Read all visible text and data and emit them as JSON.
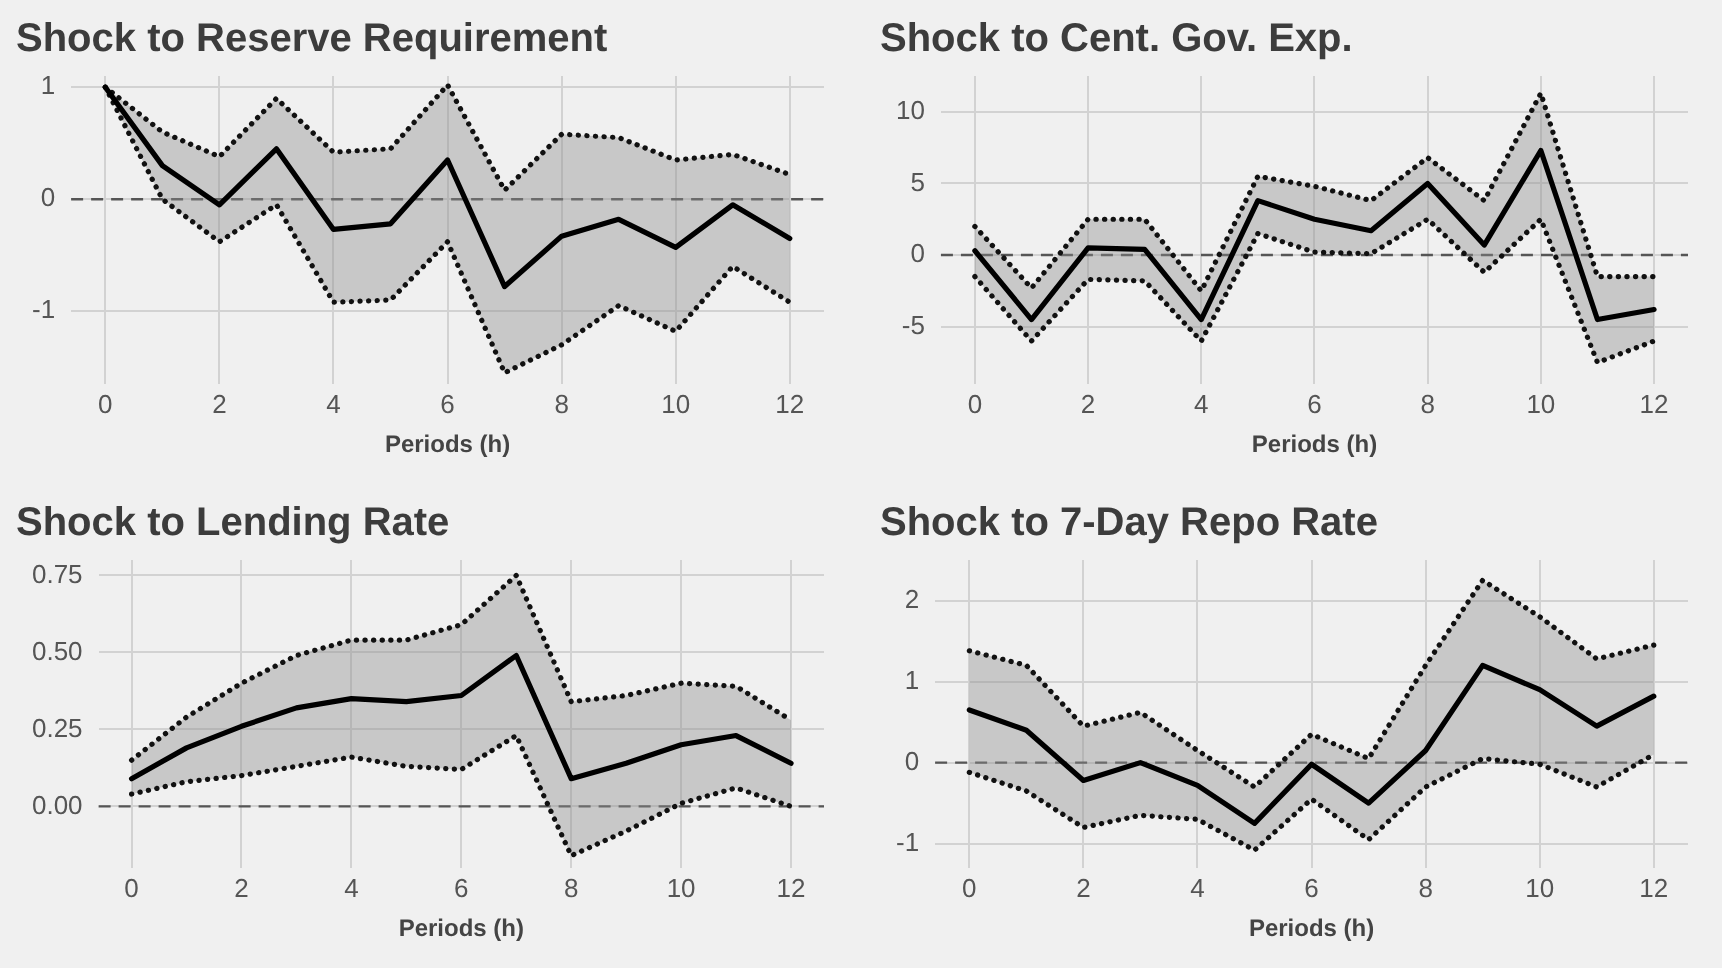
{
  "chart_data": [
    {
      "type": "line",
      "title": "Shock to Reserve Requirement",
      "xlabel": "Periods (h)",
      "x": [
        0,
        1,
        2,
        3,
        4,
        5,
        6,
        7,
        8,
        9,
        10,
        11,
        12
      ],
      "xlim": [
        -0.6,
        12.6
      ],
      "xticks": [
        0,
        2,
        4,
        6,
        8,
        10,
        12
      ],
      "ylim": [
        -1.65,
        1.1
      ],
      "yticks": [
        -1,
        0,
        1
      ],
      "grid": true,
      "legend": false,
      "marker": "none",
      "series": [
        {
          "color": "#000000",
          "line_style": "solid",
          "values": [
            1.0,
            0.3,
            -0.05,
            0.45,
            -0.27,
            -0.22,
            0.35,
            -0.78,
            -0.33,
            -0.18,
            -0.43,
            -0.05,
            -0.35
          ],
          "upper": [
            1.0,
            0.6,
            0.38,
            0.9,
            0.42,
            0.45,
            1.02,
            0.08,
            0.58,
            0.55,
            0.35,
            0.4,
            0.22
          ],
          "lower": [
            1.0,
            0.0,
            -0.38,
            -0.05,
            -0.92,
            -0.9,
            -0.38,
            -1.55,
            -1.3,
            -0.95,
            -1.18,
            -0.6,
            -0.92
          ]
        },
        {
          "color": "#111111",
          "line_style": "dotted",
          "values": [
            1.0,
            0.6,
            0.38,
            0.9,
            0.42,
            0.45,
            1.02,
            0.08,
            0.58,
            0.55,
            0.35,
            0.4,
            0.22
          ]
        },
        {
          "color": "#111111",
          "line_style": "dotted",
          "values": [
            1.0,
            0.0,
            -0.38,
            -0.05,
            -0.92,
            -0.9,
            -0.38,
            -1.55,
            -1.3,
            -0.95,
            -1.18,
            -0.6,
            -0.92
          ]
        }
      ],
      "ref_lines": [
        {
          "axis": "y",
          "value": 0,
          "color": "#555555",
          "line_style": "dashed"
        }
      ]
    },
    {
      "type": "line",
      "title": "Shock to Cent. Gov. Exp.",
      "xlabel": "Periods (h)",
      "x": [
        0,
        1,
        2,
        3,
        4,
        5,
        6,
        7,
        8,
        9,
        10,
        11,
        12
      ],
      "xlim": [
        -0.6,
        12.6
      ],
      "xticks": [
        0,
        2,
        4,
        6,
        8,
        10,
        12
      ],
      "ylim": [
        -9,
        12.5
      ],
      "yticks": [
        -5,
        0,
        5,
        10
      ],
      "grid": true,
      "legend": false,
      "marker": "none",
      "series": [
        {
          "color": "#000000",
          "line_style": "solid",
          "values": [
            0.3,
            -4.5,
            0.5,
            0.4,
            -4.5,
            3.8,
            2.5,
            1.7,
            5,
            0.7,
            7.3,
            -4.5,
            -3.8
          ],
          "upper": [
            2,
            -2.3,
            2.5,
            2.5,
            -2.5,
            5.5,
            4.8,
            3.8,
            6.8,
            3.8,
            11.3,
            -1.5,
            -1.5
          ],
          "lower": [
            -1.5,
            -6,
            -1.7,
            -1.8,
            -6,
            1.5,
            0.2,
            0.1,
            2.5,
            -1.2,
            2.5,
            -7.5,
            -6
          ]
        },
        {
          "color": "#111111",
          "line_style": "dotted",
          "values": [
            2,
            -2.3,
            2.5,
            2.5,
            -2.5,
            5.5,
            4.8,
            3.8,
            6.8,
            3.8,
            11.3,
            -1.5,
            -1.5
          ]
        },
        {
          "color": "#111111",
          "line_style": "dotted",
          "values": [
            -1.5,
            -6,
            -1.7,
            -1.8,
            -6,
            1.5,
            0.2,
            0.1,
            2.5,
            -1.2,
            2.5,
            -7.5,
            -6
          ]
        }
      ],
      "ref_lines": [
        {
          "axis": "y",
          "value": 0,
          "color": "#555555",
          "line_style": "dashed"
        }
      ]
    },
    {
      "type": "line",
      "title": "Shock to Lending Rate",
      "xlabel": "Periods (h)",
      "x": [
        0,
        1,
        2,
        3,
        4,
        5,
        6,
        7,
        8,
        9,
        10,
        11,
        12
      ],
      "xlim": [
        -0.6,
        12.6
      ],
      "xticks": [
        0,
        2,
        4,
        6,
        8,
        10,
        12
      ],
      "ylim": [
        -0.2,
        0.8
      ],
      "yticks": [
        {
          "value": 0,
          "label": "0.00"
        },
        {
          "value": 0.25,
          "label": "0.25"
        },
        {
          "value": 0.5,
          "label": "0.50"
        },
        {
          "value": 0.75,
          "label": "0.75"
        }
      ],
      "grid": true,
      "legend": false,
      "marker": "none",
      "series": [
        {
          "color": "#000000",
          "line_style": "solid",
          "values": [
            0.09,
            0.19,
            0.26,
            0.32,
            0.35,
            0.34,
            0.36,
            0.49,
            0.09,
            0.14,
            0.2,
            0.23,
            0.14
          ],
          "upper": [
            0.15,
            0.29,
            0.4,
            0.49,
            0.54,
            0.54,
            0.59,
            0.75,
            0.34,
            0.36,
            0.4,
            0.39,
            0.28
          ],
          "lower": [
            0.04,
            0.08,
            0.1,
            0.13,
            0.16,
            0.13,
            0.12,
            0.23,
            -0.16,
            -0.08,
            0.01,
            0.06,
            0.0
          ]
        },
        {
          "color": "#111111",
          "line_style": "dotted",
          "values": [
            0.15,
            0.29,
            0.4,
            0.49,
            0.54,
            0.54,
            0.59,
            0.75,
            0.34,
            0.36,
            0.4,
            0.39,
            0.28
          ]
        },
        {
          "color": "#111111",
          "line_style": "dotted",
          "values": [
            0.04,
            0.08,
            0.1,
            0.13,
            0.16,
            0.13,
            0.12,
            0.23,
            -0.16,
            -0.08,
            0.01,
            0.06,
            0.0
          ]
        }
      ],
      "ref_lines": [
        {
          "axis": "y",
          "value": 0,
          "color": "#555555",
          "line_style": "dashed"
        }
      ]
    },
    {
      "type": "line",
      "title": "Shock to 7-Day Repo Rate",
      "xlabel": "Periods (h)",
      "x": [
        0,
        1,
        2,
        3,
        4,
        5,
        6,
        7,
        8,
        9,
        10,
        11,
        12
      ],
      "xlim": [
        -0.6,
        12.6
      ],
      "xticks": [
        0,
        2,
        4,
        6,
        8,
        10,
        12
      ],
      "ylim": [
        -1.3,
        2.5
      ],
      "yticks": [
        -1,
        0,
        1,
        2
      ],
      "grid": true,
      "legend": false,
      "marker": "none",
      "series": [
        {
          "color": "#000000",
          "line_style": "solid",
          "values": [
            0.65,
            0.4,
            -0.22,
            0.0,
            -0.28,
            -0.75,
            -0.02,
            -0.5,
            0.15,
            1.2,
            0.9,
            0.45,
            0.82
          ],
          "upper": [
            1.38,
            1.2,
            0.45,
            0.62,
            0.15,
            -0.3,
            0.35,
            0.05,
            1.2,
            2.25,
            1.8,
            1.28,
            1.45
          ],
          "lower": [
            -0.12,
            -0.35,
            -0.8,
            -0.65,
            -0.7,
            -1.08,
            -0.45,
            -0.95,
            -0.3,
            0.05,
            -0.02,
            -0.3,
            0.1
          ]
        },
        {
          "color": "#111111",
          "line_style": "dotted",
          "values": [
            1.38,
            1.2,
            0.45,
            0.62,
            0.15,
            -0.3,
            0.35,
            0.05,
            1.2,
            2.25,
            1.8,
            1.28,
            1.45
          ]
        },
        {
          "color": "#111111",
          "line_style": "dotted",
          "values": [
            -0.12,
            -0.35,
            -0.8,
            -0.65,
            -0.7,
            -1.08,
            -0.45,
            -0.95,
            -0.3,
            0.05,
            -0.02,
            -0.3,
            0.1
          ]
        }
      ],
      "ref_lines": [
        {
          "axis": "y",
          "value": 0,
          "color": "#555555",
          "line_style": "dashed"
        }
      ]
    }
  ]
}
